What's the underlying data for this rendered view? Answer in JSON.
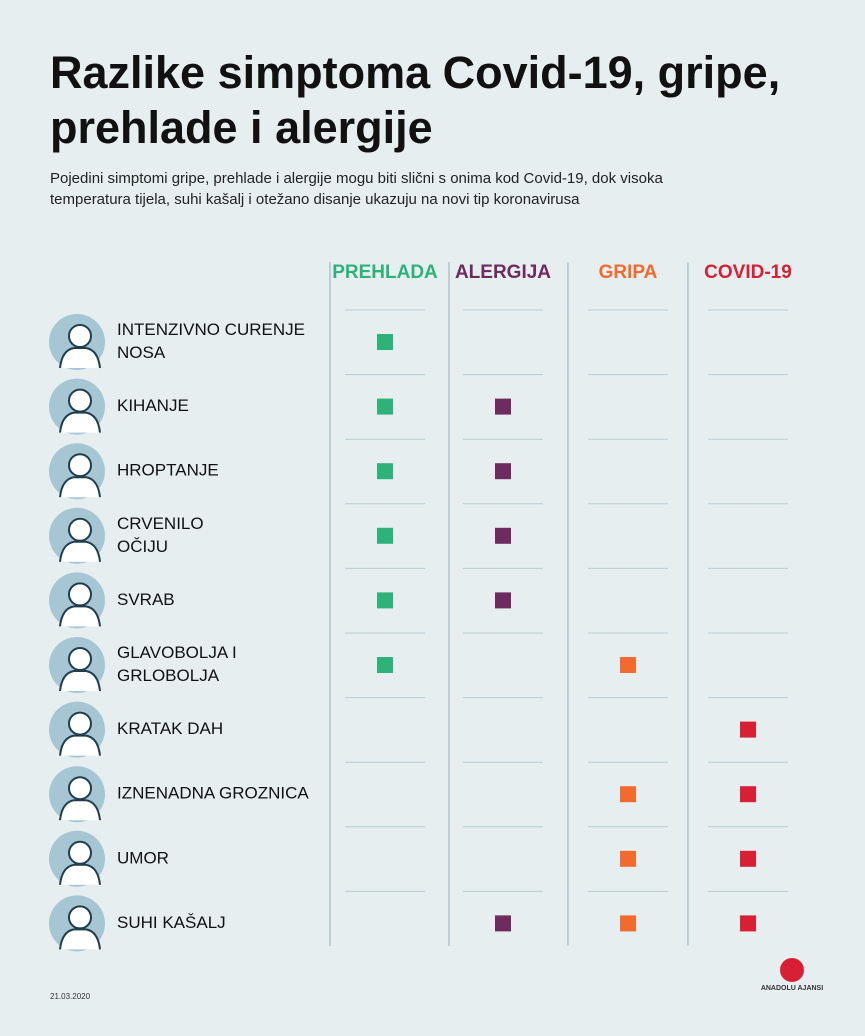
{
  "header": {
    "title_lines": [
      "Razlike simptoma Covid-19, gripe,",
      "prehlade i alergije"
    ],
    "subtitle_lines": [
      "Pojedini simptomi gripe, prehlade i alergije mogu biti slični s onima kod Covid-19, dok visoka",
      "temperatura tijela, suhi kašalj i otežano disanje ukazuju na novi tip koronavirusa"
    ]
  },
  "columns": [
    {
      "name": "PREHLADA",
      "color": "#2db37a"
    },
    {
      "name": "ALERGIJA",
      "color": "#6e2b5e"
    },
    {
      "name": "GRIPA",
      "color": "#f26a2e"
    },
    {
      "name": "COVID-19",
      "color": "#d71f35"
    }
  ],
  "rows": [
    {
      "label_lines": [
        "INTENZIVNO CURENJE",
        "NOSA"
      ],
      "marks": [
        true,
        false,
        false,
        false
      ]
    },
    {
      "label_lines": [
        "KIHANJE"
      ],
      "marks": [
        true,
        true,
        false,
        false
      ]
    },
    {
      "label_lines": [
        "HROPTANJE"
      ],
      "marks": [
        true,
        true,
        false,
        false
      ]
    },
    {
      "label_lines": [
        "CRVENILO",
        "OČIJU"
      ],
      "marks": [
        true,
        true,
        false,
        false
      ]
    },
    {
      "label_lines": [
        "SVRAB"
      ],
      "marks": [
        true,
        true,
        false,
        false
      ]
    },
    {
      "label_lines": [
        "GLAVOBOLJA I",
        "GRLOBOLJA"
      ],
      "marks": [
        true,
        false,
        true,
        false
      ]
    },
    {
      "label_lines": [
        "KRATAK DAH"
      ],
      "marks": [
        false,
        false,
        false,
        true
      ]
    },
    {
      "label_lines": [
        "IZNENADNA GROZNICA"
      ],
      "marks": [
        false,
        false,
        true,
        true
      ]
    },
    {
      "label_lines": [
        "UMOR"
      ],
      "marks": [
        false,
        false,
        true,
        true
      ]
    },
    {
      "label_lines": [
        "SUHI KAŠALJ"
      ],
      "marks": [
        false,
        true,
        true,
        true
      ]
    }
  ],
  "footer": {
    "date": "21.03.2020",
    "logo": "ANADOLU AJANSI"
  }
}
